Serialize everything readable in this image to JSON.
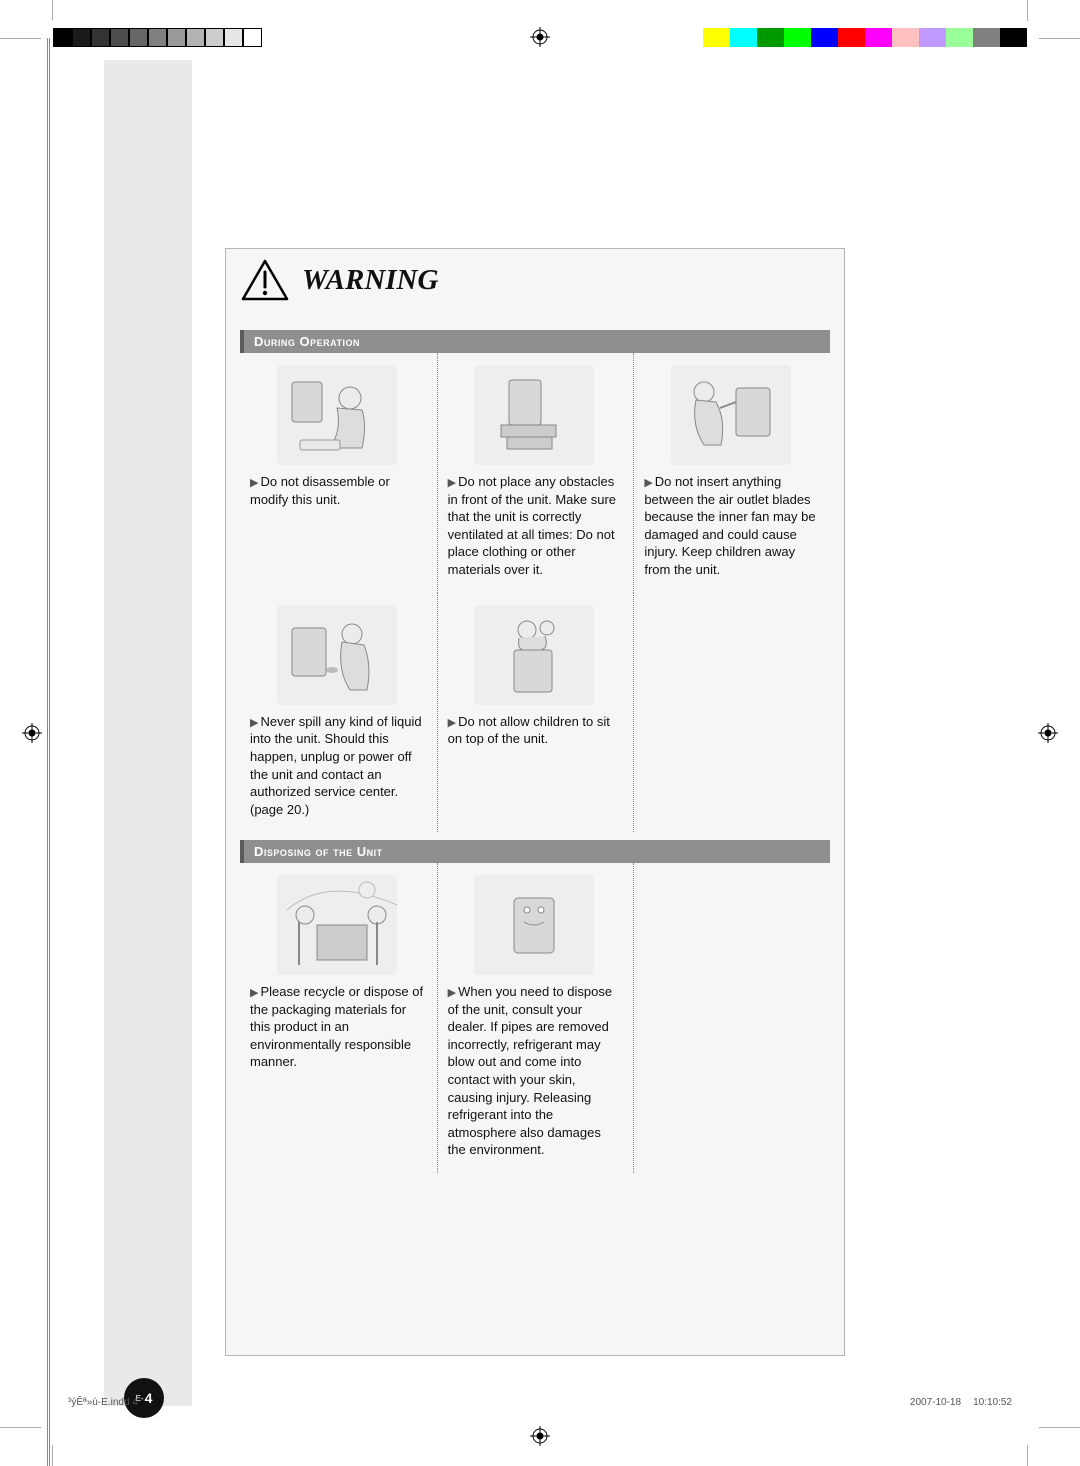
{
  "registration": {
    "grayscale_steps": [
      "#000000",
      "#1a1a1a",
      "#333333",
      "#4d4d4d",
      "#666666",
      "#808080",
      "#999999",
      "#b3b3b3",
      "#cccccc",
      "#e6e6e6",
      "#ffffff"
    ],
    "color_bar": [
      "#ffffff",
      "#ffff00",
      "#00ffff",
      "#009900",
      "#00ff00",
      "#0000ff",
      "#ff0000",
      "#ff00ff",
      "#ffc0c0",
      "#c09aff",
      "#99ff99",
      "#808080",
      "#000000"
    ]
  },
  "warning_label": "WARNING",
  "sections": {
    "operation": {
      "title": "During Operation",
      "items": [
        {
          "text": "Do not disassemble or modify this unit."
        },
        {
          "text": "Do not place any obstacles in front of the unit. Make sure that the unit is correctly ventilated at all times: Do not place clothing or other materials over it."
        },
        {
          "text": "Do not insert anything between the air outlet blades because the inner fan may be damaged and could cause injury. Keep children away from the unit."
        },
        {
          "text": "Never spill any kind of liquid into the unit. Should this happen, unplug or power off the unit and contact an authorized service center. (page 20.)"
        },
        {
          "text": "Do not allow children to sit on top of the unit."
        }
      ]
    },
    "disposal": {
      "title": "Disposing of the Unit",
      "items": [
        {
          "text": "Please recycle or dispose of the packaging materials for this product in an environmentally responsible manner."
        },
        {
          "text": "When you need to dispose of the unit, consult your dealer. If pipes are removed incorrectly, refrigerant may blow out and come into contact with your skin, causing injury. Releasing refrigerant into the atmosphere also damages the environment."
        }
      ]
    }
  },
  "page_number": "4",
  "page_prefix": "E-",
  "footer": {
    "file": "³ýÊª»ú-E.indd   4",
    "date": "2007-10-18",
    "time": "10:10:52"
  }
}
